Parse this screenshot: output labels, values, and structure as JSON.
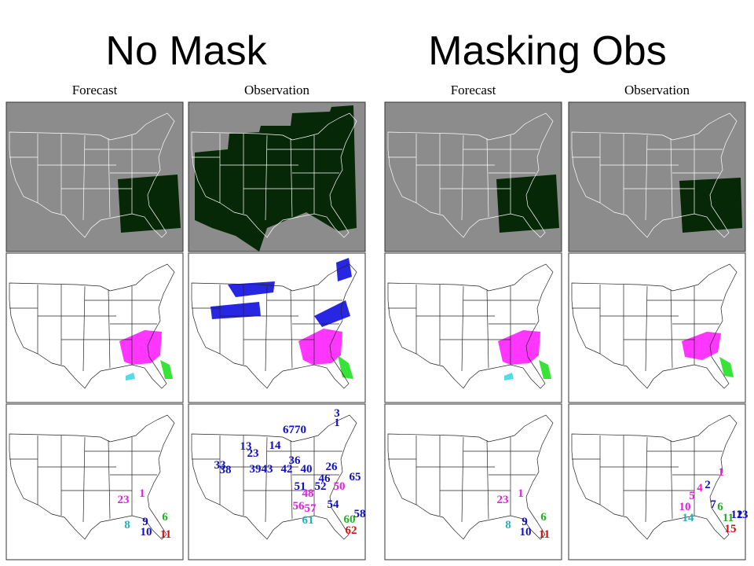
{
  "title_left": "No Mask",
  "title_right": "Masking Obs",
  "panels": [
    {
      "header": "Forecast",
      "labels": [
        {
          "text": "1",
          "color": "#e020e0"
        },
        {
          "text": "23",
          "color": "#e020e0"
        },
        {
          "text": "8",
          "color": "#20b0c0"
        },
        {
          "text": "9",
          "color": "#1010c0"
        },
        {
          "text": "10",
          "color": "#1010c0"
        },
        {
          "text": "6",
          "color": "#20b020"
        },
        {
          "text": "11",
          "color": "#d01010"
        }
      ]
    },
    {
      "header": "Observation",
      "labels": [
        {
          "text": "3",
          "color": "#1010c0"
        },
        {
          "text": "1",
          "color": "#1010c0"
        },
        {
          "text": "6770",
          "color": "#1010c0"
        },
        {
          "text": "14",
          "color": "#1010c0"
        },
        {
          "text": "13",
          "color": "#1010c0"
        },
        {
          "text": "23",
          "color": "#1010c0"
        },
        {
          "text": "33",
          "color": "#1010c0"
        },
        {
          "text": "38",
          "color": "#1010c0"
        },
        {
          "text": "39",
          "color": "#1010c0"
        },
        {
          "text": "43",
          "color": "#1010c0"
        },
        {
          "text": "42",
          "color": "#1010c0"
        },
        {
          "text": "36",
          "color": "#1010c0"
        },
        {
          "text": "40",
          "color": "#1010c0"
        },
        {
          "text": "26",
          "color": "#1010c0"
        },
        {
          "text": "46",
          "color": "#1010c0"
        },
        {
          "text": "52",
          "color": "#1010c0"
        },
        {
          "text": "50",
          "color": "#e020e0"
        },
        {
          "text": "65",
          "color": "#1010c0"
        },
        {
          "text": "51",
          "color": "#1010c0"
        },
        {
          "text": "48",
          "color": "#e020e0"
        },
        {
          "text": "54",
          "color": "#1010c0"
        },
        {
          "text": "56",
          "color": "#e020e0"
        },
        {
          "text": "57",
          "color": "#e020e0"
        },
        {
          "text": "61",
          "color": "#20b0c0"
        },
        {
          "text": "58",
          "color": "#1010c0"
        },
        {
          "text": "60",
          "color": "#20b020"
        },
        {
          "text": "62",
          "color": "#d01010"
        }
      ]
    },
    {
      "header": "Forecast",
      "labels": [
        {
          "text": "1",
          "color": "#e020e0"
        },
        {
          "text": "23",
          "color": "#e020e0"
        },
        {
          "text": "8",
          "color": "#20b0c0"
        },
        {
          "text": "9",
          "color": "#1010c0"
        },
        {
          "text": "10",
          "color": "#1010c0"
        },
        {
          "text": "6",
          "color": "#20b020"
        },
        {
          "text": "11",
          "color": "#d01010"
        }
      ]
    },
    {
      "header": "Observation",
      "labels": [
        {
          "text": "1",
          "color": "#e020e0"
        },
        {
          "text": "2",
          "color": "#1010c0"
        },
        {
          "text": "4",
          "color": "#e020e0"
        },
        {
          "text": "5",
          "color": "#e020e0"
        },
        {
          "text": "7",
          "color": "#1010c0"
        },
        {
          "text": "6",
          "color": "#20b020"
        },
        {
          "text": "10",
          "color": "#e020e0"
        },
        {
          "text": "14",
          "color": "#20b0c0"
        },
        {
          "text": "12",
          "color": "#1010c0"
        },
        {
          "text": "13",
          "color": "#1010c0"
        },
        {
          "text": "11",
          "color": "#20b020"
        },
        {
          "text": "15",
          "color": "#d01010"
        }
      ]
    }
  ]
}
